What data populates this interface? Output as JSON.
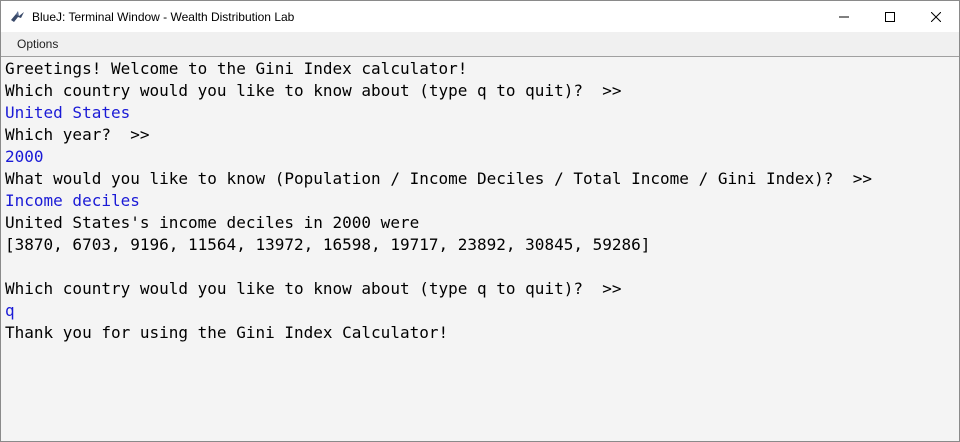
{
  "window": {
    "title": "BlueJ: Terminal Window - Wealth Distribution Lab",
    "menu": [
      "Options"
    ]
  },
  "terminal": {
    "lines": [
      {
        "text": "Greetings! Welcome to the Gini Index calculator!",
        "type": "output"
      },
      {
        "text": "Which country would you like to know about (type q to quit)?  >>",
        "type": "output"
      },
      {
        "text": "United States",
        "type": "input"
      },
      {
        "text": "Which year?  >>",
        "type": "output"
      },
      {
        "text": "2000",
        "type": "input"
      },
      {
        "text": "What would you like to know (Population / Income Deciles / Total Income / Gini Index)?  >>",
        "type": "output"
      },
      {
        "text": "Income deciles",
        "type": "input"
      },
      {
        "text": "United States's income deciles in 2000 were",
        "type": "output"
      },
      {
        "text": "[3870, 6703, 9196, 11564, 13972, 16598, 19717, 23892, 30845, 59286]",
        "type": "output"
      },
      {
        "text": "",
        "type": "output"
      },
      {
        "text": "Which country would you like to know about (type q to quit)?  >>",
        "type": "output"
      },
      {
        "text": "q",
        "type": "input"
      },
      {
        "text": "Thank you for using the Gini Index Calculator!",
        "type": "output"
      }
    ]
  },
  "colors": {
    "input_text": "#1a1ad6",
    "output_text": "#000000",
    "background": "#f4f4f4"
  }
}
